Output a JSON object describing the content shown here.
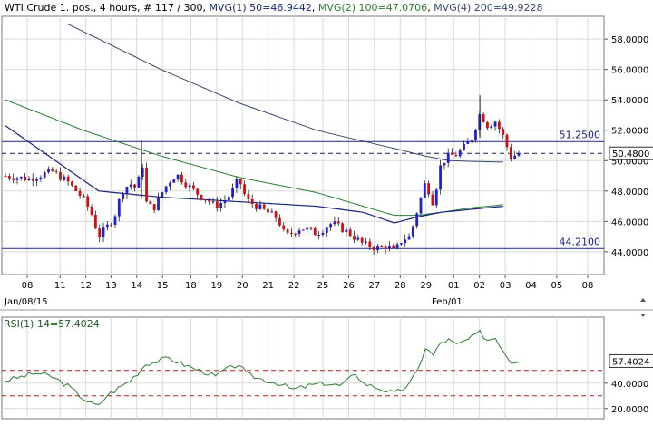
{
  "header": {
    "symbol": "WTI Crude 1. pos.",
    "timeframe": "4 hours",
    "bar_info": "# 117 / 300",
    "ma_labels": [
      {
        "text": "MVG(1) 50=46.9442",
        "color": "#1a237e"
      },
      {
        "text": "MVG(2) 100=47.0706",
        "color": "#2e7d32"
      },
      {
        "text": "MVG(4) 200=49.9228",
        "color": "#37476b"
      }
    ]
  },
  "rsi_header": "RSI(1) 14=57.4024",
  "x_date_labels": [
    "Jan/08/15",
    "Feb/01"
  ],
  "colors": {
    "up": "#1f1fd6",
    "down": "#d01010",
    "ma50": "#1a237e",
    "ma100": "#2e7d32",
    "ma200": "#37476b",
    "rsi": "#2e7d32",
    "hline": "#37409a",
    "grid": "#d9d9d9"
  },
  "chart_data": [
    {
      "type": "candlestick",
      "ylim": [
        42.5,
        59.5
      ],
      "y_ticks": [
        44,
        46,
        48,
        50,
        52,
        54,
        56,
        58
      ],
      "y_tick_labels": [
        "44.0000",
        "46.0000",
        "48.0000",
        "50.0000",
        "52.0000",
        "54.0000",
        "56.0000",
        "58.0000"
      ],
      "x_ticks": [
        "08",
        "11",
        "12",
        "13",
        "14",
        "15",
        "18",
        "19",
        "20",
        "21",
        "22",
        "25",
        "26",
        "27",
        "28",
        "29",
        "01",
        "02",
        "03",
        "04",
        "05",
        "08"
      ],
      "horizontal_lines": [
        {
          "label": "51.2500",
          "value": 51.25,
          "style": "solid"
        },
        {
          "label": "44.2100",
          "value": 44.21,
          "style": "solid"
        },
        {
          "label": "50.4800",
          "value": 50.48,
          "style": "dashed"
        }
      ],
      "current_price": {
        "label": "50.4800",
        "value": 50.48
      },
      "price_path": [
        [
          0,
          49.0
        ],
        [
          3,
          48.8
        ],
        [
          6,
          49.3
        ],
        [
          8,
          48.6
        ],
        [
          10,
          47.5
        ],
        [
          11,
          46.6
        ],
        [
          12,
          45.0
        ],
        [
          13,
          45.6
        ],
        [
          14,
          46.3
        ],
        [
          15,
          48.0
        ],
        [
          16,
          48.5
        ],
        [
          17,
          48.1
        ],
        [
          17.5,
          50.6
        ],
        [
          18,
          47.3
        ],
        [
          19,
          46.8
        ],
        [
          20,
          47.8
        ],
        [
          21,
          48.6
        ],
        [
          22,
          49.1
        ],
        [
          23,
          48.6
        ],
        [
          24,
          48.1
        ],
        [
          25,
          47.7
        ],
        [
          26,
          47.4
        ],
        [
          27,
          47.0
        ],
        [
          28,
          47.3
        ],
        [
          29,
          47.8
        ],
        [
          30,
          48.8
        ],
        [
          31,
          47.4
        ],
        [
          33,
          46.8
        ],
        [
          35,
          46.2
        ],
        [
          36,
          45.0
        ],
        [
          38,
          45.6
        ],
        [
          40,
          45.2
        ],
        [
          42,
          45.9
        ],
        [
          44,
          45.3
        ],
        [
          46,
          44.5
        ],
        [
          48,
          44.2
        ],
        [
          49,
          44.4
        ],
        [
          50,
          44.0
        ],
        [
          51,
          44.8
        ],
        [
          52,
          45.0
        ],
        [
          53,
          46.8
        ],
        [
          54,
          48.6
        ],
        [
          55,
          47.2
        ],
        [
          56,
          49.8
        ],
        [
          57,
          50.3
        ],
        [
          58,
          50.4
        ],
        [
          59,
          50.9
        ],
        [
          60,
          51.5
        ],
        [
          61,
          53.1
        ],
        [
          62,
          52.3
        ],
        [
          63,
          52.6
        ],
        [
          64,
          51.6
        ],
        [
          65,
          50.2
        ],
        [
          66,
          50.5
        ]
      ],
      "ma50": [
        [
          0,
          52.3
        ],
        [
          12,
          48.0
        ],
        [
          20,
          47.6
        ],
        [
          30,
          47.3
        ],
        [
          40,
          47.0
        ],
        [
          46,
          46.6
        ],
        [
          50,
          45.9
        ],
        [
          53,
          46.3
        ],
        [
          56,
          46.6
        ],
        [
          60,
          46.8
        ],
        [
          64,
          47.0
        ]
      ],
      "ma100": [
        [
          0,
          54.0
        ],
        [
          10,
          52.0
        ],
        [
          20,
          50.3
        ],
        [
          30,
          48.9
        ],
        [
          40,
          47.9
        ],
        [
          46,
          47.0
        ],
        [
          50,
          46.4
        ],
        [
          53,
          46.4
        ],
        [
          56,
          46.6
        ],
        [
          60,
          46.9
        ],
        [
          64,
          47.1
        ]
      ],
      "ma200": [
        [
          8,
          59.0
        ],
        [
          20,
          56.0
        ],
        [
          30,
          53.8
        ],
        [
          40,
          52.0
        ],
        [
          50,
          50.8
        ],
        [
          54,
          50.3
        ],
        [
          57,
          50.0
        ],
        [
          60,
          49.95
        ],
        [
          64,
          49.9
        ]
      ]
    },
    {
      "type": "line",
      "name": "RSI(1) 14",
      "ylim": [
        12,
        92
      ],
      "y_ticks": [
        20,
        40
      ],
      "y_tick_labels": [
        "20.0000",
        "40.0000"
      ],
      "current_value": {
        "label": "57.4024",
        "value": 57.4
      },
      "dashed_levels": [
        50,
        30
      ],
      "rsi_path": [
        [
          0,
          42
        ],
        [
          4,
          48
        ],
        [
          6,
          45
        ],
        [
          8,
          38
        ],
        [
          10,
          28
        ],
        [
          11,
          24
        ],
        [
          12,
          22
        ],
        [
          13,
          30
        ],
        [
          15,
          38
        ],
        [
          16,
          42
        ],
        [
          17,
          48
        ],
        [
          18,
          55
        ],
        [
          20,
          58
        ],
        [
          21,
          60
        ],
        [
          22,
          57
        ],
        [
          24,
          52
        ],
        [
          26,
          48
        ],
        [
          27,
          45
        ],
        [
          28,
          50
        ],
        [
          29,
          52
        ],
        [
          30,
          55
        ],
        [
          31,
          47
        ],
        [
          33,
          43
        ],
        [
          35,
          40
        ],
        [
          37,
          35
        ],
        [
          39,
          38
        ],
        [
          41,
          40
        ],
        [
          43,
          38
        ],
        [
          44,
          42
        ],
        [
          45,
          48
        ],
        [
          46,
          40
        ],
        [
          48,
          36
        ],
        [
          50,
          32
        ],
        [
          51,
          35
        ],
        [
          52,
          40
        ],
        [
          53,
          50
        ],
        [
          54,
          68
        ],
        [
          55,
          62
        ],
        [
          56,
          72
        ],
        [
          57,
          74
        ],
        [
          58,
          70
        ],
        [
          59,
          73
        ],
        [
          60,
          76
        ],
        [
          61,
          80
        ],
        [
          62,
          74
        ],
        [
          63,
          76
        ],
        [
          64,
          66
        ],
        [
          65,
          57
        ],
        [
          66,
          58
        ]
      ]
    }
  ]
}
